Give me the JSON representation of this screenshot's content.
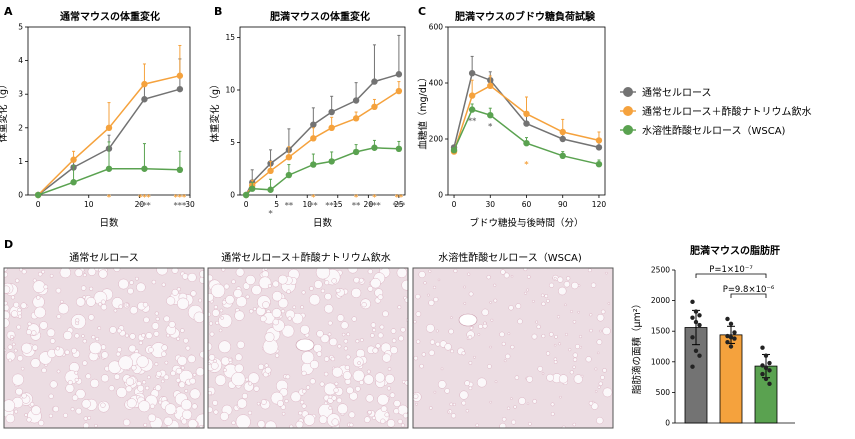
{
  "colors": {
    "gray": "#737373",
    "orange": "#f5a23d",
    "green": "#5aa250",
    "photo_bg": "#ecdde3",
    "photo_vacuole": "#fbf8fa",
    "photo_tissue": "#dcb4c3"
  },
  "legend": {
    "items": [
      {
        "label": "通常セルロース",
        "color": "#737373"
      },
      {
        "label": "通常セルロース＋酢酸ナトリウム飲水",
        "color": "#f5a23d"
      },
      {
        "label": "水溶性酢酸セルロース（WSCA)",
        "color": "#5aa250"
      }
    ]
  },
  "panel_d": {
    "label": "D",
    "photo_captions": [
      "通常セルロース",
      "通常セルロース＋酢酸ナトリウム飲水",
      "水溶性酢酸セルロース（WSCA)"
    ]
  },
  "chart_data": [
    {
      "panel": "A",
      "type": "line",
      "title": "通常マウスの体重変化",
      "xlabel": "日数",
      "ylabel": "体重変化（g）",
      "xlim": [
        -2,
        30
      ],
      "ylim": [
        0,
        5
      ],
      "xticks": [
        0,
        10,
        20,
        30
      ],
      "yticks": [
        0,
        1,
        2,
        3,
        4,
        5
      ],
      "series": [
        {
          "color": "#737373",
          "x": [
            0,
            7,
            14,
            21,
            28
          ],
          "y": [
            0,
            0.82,
            1.38,
            2.85,
            3.15
          ],
          "err": [
            0,
            0.25,
            0.4,
            0.45,
            0.9
          ]
        },
        {
          "color": "#f5a23d",
          "x": [
            0,
            7,
            14,
            21,
            28
          ],
          "y": [
            0,
            1.05,
            2.0,
            3.3,
            3.55
          ],
          "err": [
            0,
            0.25,
            0.75,
            0.6,
            0.9
          ]
        },
        {
          "color": "#5aa250",
          "x": [
            0,
            7,
            14,
            21,
            28
          ],
          "y": [
            0,
            0.38,
            0.78,
            0.78,
            0.75
          ],
          "err": [
            0,
            0.5,
            0.8,
            0.75,
            0.55
          ]
        }
      ],
      "annotations": [
        {
          "text": "*",
          "x": 14,
          "color": "#f5a23d",
          "row": 0
        },
        {
          "text": "***",
          "x": 21,
          "color": "#f5a23d",
          "row": 0
        },
        {
          "text": "***",
          "x": 21,
          "color": "#737373",
          "row": 1
        },
        {
          "text": "***",
          "x": 28,
          "color": "#f5a23d",
          "row": 0
        },
        {
          "text": "***",
          "x": 28,
          "color": "#737373",
          "row": 1
        }
      ]
    },
    {
      "panel": "B",
      "type": "line",
      "title": "肥満マウスの体重変化",
      "xlabel": "日数",
      "ylabel": "体重変化（g）",
      "xlim": [
        -1,
        26
      ],
      "ylim": [
        0,
        16
      ],
      "xticks": [
        0,
        5,
        10,
        15,
        20,
        25
      ],
      "yticks": [
        0,
        5,
        10,
        15
      ],
      "series": [
        {
          "color": "#737373",
          "x": [
            0,
            1,
            4,
            7,
            11,
            14,
            18,
            21,
            25
          ],
          "y": [
            0,
            1.2,
            3.0,
            4.3,
            6.7,
            7.9,
            9.0,
            10.8,
            11.5
          ],
          "err": [
            0,
            1.2,
            1.3,
            2.0,
            1.6,
            1.5,
            1.7,
            3.5,
            3.7
          ]
        },
        {
          "color": "#f5a23d",
          "x": [
            0,
            1,
            4,
            7,
            11,
            14,
            18,
            21,
            25
          ],
          "y": [
            0,
            0.9,
            2.3,
            3.6,
            5.4,
            6.4,
            7.3,
            8.4,
            9.9
          ],
          "err": [
            0,
            0.5,
            0.9,
            1.0,
            1.0,
            1.0,
            0.6,
            0.7,
            0.9
          ]
        },
        {
          "color": "#5aa250",
          "x": [
            0,
            1,
            4,
            7,
            11,
            14,
            18,
            21,
            25
          ],
          "y": [
            0,
            0.6,
            0.5,
            1.9,
            2.9,
            3.2,
            4.1,
            4.5,
            4.4
          ],
          "err": [
            0,
            0.6,
            1.0,
            1.0,
            1.0,
            0.9,
            0.7,
            0.7,
            0.7
          ]
        }
      ],
      "annotations": [
        {
          "text": "*",
          "x": 4,
          "color": "#737373",
          "row": 2
        },
        {
          "text": "**",
          "x": 7,
          "color": "#737373",
          "row": 1
        },
        {
          "text": "*",
          "x": 11,
          "color": "#f5a23d",
          "row": 0
        },
        {
          "text": "**",
          "x": 11,
          "color": "#737373",
          "row": 1
        },
        {
          "text": "***",
          "x": 14,
          "color": "#737373",
          "row": 1
        },
        {
          "text": "*",
          "x": 18,
          "color": "#f5a23d",
          "row": 0
        },
        {
          "text": "**",
          "x": 18,
          "color": "#737373",
          "row": 1
        },
        {
          "text": "*",
          "x": 21,
          "color": "#f5a23d",
          "row": 0
        },
        {
          "text": "***",
          "x": 21,
          "color": "#737373",
          "row": 1
        },
        {
          "text": "**",
          "x": 25,
          "color": "#f5a23d",
          "row": 0
        },
        {
          "text": "***",
          "x": 25,
          "color": "#737373",
          "row": 1
        }
      ]
    },
    {
      "panel": "C",
      "type": "line",
      "title": "肥満マウスのブドウ糖負荷試験",
      "xlabel": "ブドウ糖投与後時間（分）",
      "ylabel": "血糖値（mg/dL）",
      "xlim": [
        -5,
        125
      ],
      "ylim": [
        0,
        600
      ],
      "xticks": [
        0,
        30,
        60,
        90,
        120
      ],
      "yticks": [
        0,
        200,
        400,
        600
      ],
      "series": [
        {
          "color": "#737373",
          "x": [
            0,
            15,
            30,
            60,
            90,
            120
          ],
          "y": [
            170,
            435,
            410,
            255,
            200,
            170
          ],
          "err": [
            0,
            60,
            30,
            40,
            30,
            20
          ]
        },
        {
          "color": "#f5a23d",
          "x": [
            0,
            15,
            30,
            60,
            90,
            120
          ],
          "y": [
            155,
            355,
            390,
            290,
            225,
            195
          ],
          "err": [
            0,
            55,
            35,
            60,
            45,
            30
          ]
        },
        {
          "color": "#5aa250",
          "x": [
            0,
            15,
            30,
            60,
            90,
            120
          ],
          "y": [
            160,
            305,
            285,
            185,
            140,
            110
          ],
          "err": [
            0,
            20,
            25,
            20,
            15,
            15
          ]
        }
      ],
      "annotations": [
        {
          "text": "**",
          "x": 15,
          "color": "#737373",
          "row": 1
        },
        {
          "text": "*",
          "x": 30,
          "color": "#737373",
          "row": 1
        },
        {
          "text": "*",
          "x": 60,
          "color": "#f5a23d",
          "row": 1
        }
      ]
    },
    {
      "panel": "D",
      "type": "bar",
      "title": "肥満マウスの脂肪肝",
      "ylabel": "脂肪滴の面積（μm²）",
      "ylim": [
        0,
        2500
      ],
      "yticks": [
        0,
        500,
        1000,
        1500,
        2000,
        2500
      ],
      "values": [
        1560,
        1440,
        930
      ],
      "errors": [
        280,
        140,
        190
      ],
      "colors": [
        "#737373",
        "#f5a23d",
        "#5aa250"
      ],
      "points": [
        [
          1980,
          1820,
          1760,
          1720,
          1650,
          1600,
          1400,
          1180,
          1100,
          920
        ],
        [
          1700,
          1620,
          1480,
          1420,
          1400,
          1380,
          1320,
          1250
        ],
        [
          1230,
          1100,
          980,
          940,
          900,
          860,
          800,
          720,
          640
        ]
      ],
      "comparisons": [
        {
          "text": "P=1×10⁻⁷",
          "from": 0,
          "to": 2
        },
        {
          "text": "P=9.8×10⁻⁶",
          "from": 1,
          "to": 2
        }
      ]
    }
  ]
}
